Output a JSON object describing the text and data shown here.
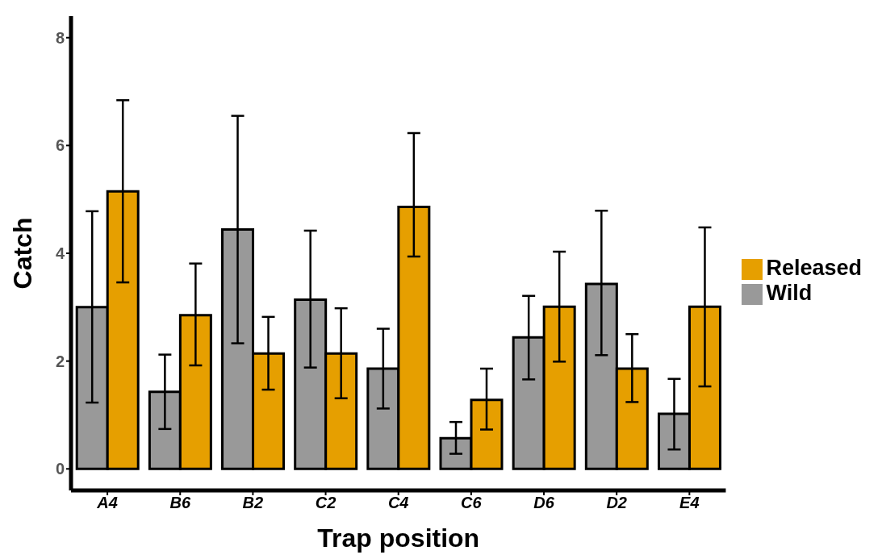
{
  "chart_data": {
    "type": "bar",
    "xlabel": "Trap position",
    "ylabel": "Catch",
    "categories": [
      "A4",
      "B6",
      "B2",
      "C2",
      "C4",
      "C6",
      "D6",
      "D2",
      "E4"
    ],
    "series": [
      {
        "name": "Wild",
        "color": "#999999",
        "values": [
          3.0,
          1.43,
          4.44,
          3.14,
          1.86,
          0.57,
          2.44,
          3.43,
          1.02
        ],
        "errors": [
          [
            1.23,
            4.78
          ],
          [
            0.74,
            2.12
          ],
          [
            2.33,
            6.55
          ],
          [
            1.88,
            4.42
          ],
          [
            1.12,
            2.6
          ],
          [
            0.28,
            0.87
          ],
          [
            1.66,
            3.21
          ],
          [
            2.11,
            4.79
          ],
          [
            0.36,
            1.67
          ]
        ]
      },
      {
        "name": "Released",
        "color": "#e69f00",
        "values": [
          5.15,
          2.85,
          2.14,
          2.14,
          4.86,
          1.28,
          3.01,
          1.86,
          3.01
        ],
        "errors": [
          [
            3.46,
            6.84
          ],
          [
            1.92,
            3.81
          ],
          [
            1.47,
            2.82
          ],
          [
            1.31,
            2.98
          ],
          [
            3.94,
            6.23
          ],
          [
            0.73,
            1.86
          ],
          [
            1.99,
            4.03
          ],
          [
            1.24,
            2.5
          ],
          [
            1.53,
            4.48
          ]
        ]
      }
    ],
    "ylim": [
      -0.4,
      8.4
    ],
    "yticks": [
      0,
      2,
      4,
      6,
      8
    ],
    "grid": false,
    "legend": "right"
  }
}
